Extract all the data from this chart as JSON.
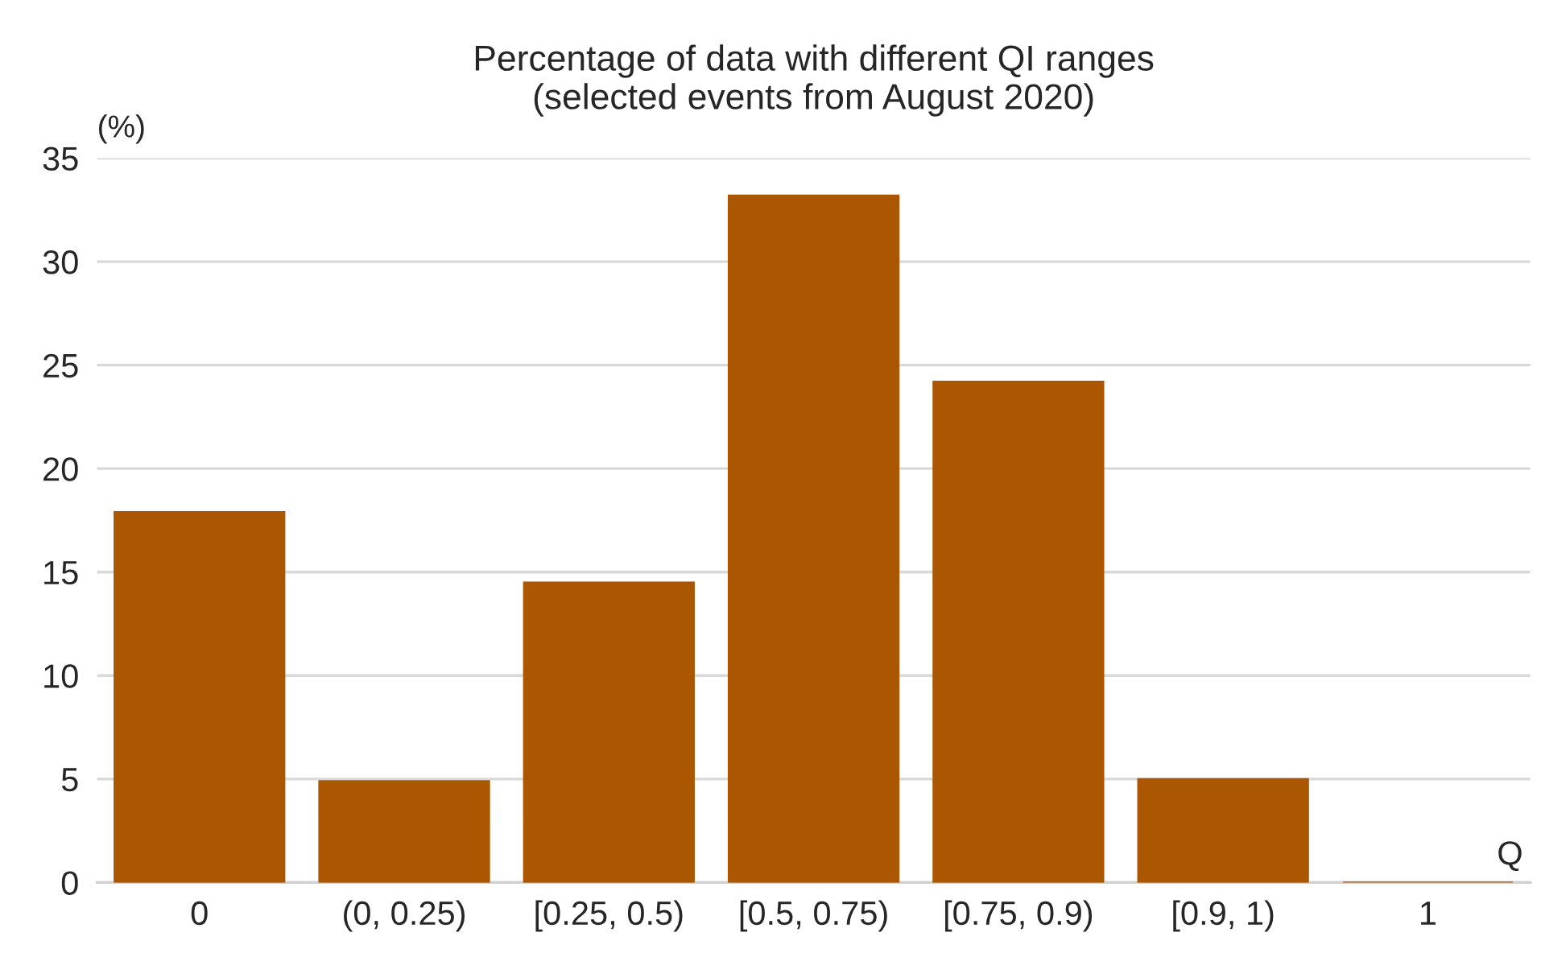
{
  "chart_data": {
    "type": "bar",
    "title": "Percentage of data with different QI ranges\n(selected events from August 2020)",
    "ylabel": "(%)",
    "xlabel": "Q",
    "categories": [
      "0",
      "(0, 0.25)",
      "[0.25, 0.5)",
      "[0.5, 0.75)",
      "[0.75, 0.9)",
      "[0.9, 1)",
      "1"
    ],
    "series": [
      {
        "color": "#ab5600",
        "values": [
          17.9,
          4.9,
          14.5,
          33.2,
          24.2,
          5.0,
          0
        ]
      }
    ],
    "ylim": [
      0,
      35
    ],
    "yticks": [
      0,
      5,
      10,
      15,
      20,
      25,
      30,
      35
    ],
    "grid": "y"
  }
}
